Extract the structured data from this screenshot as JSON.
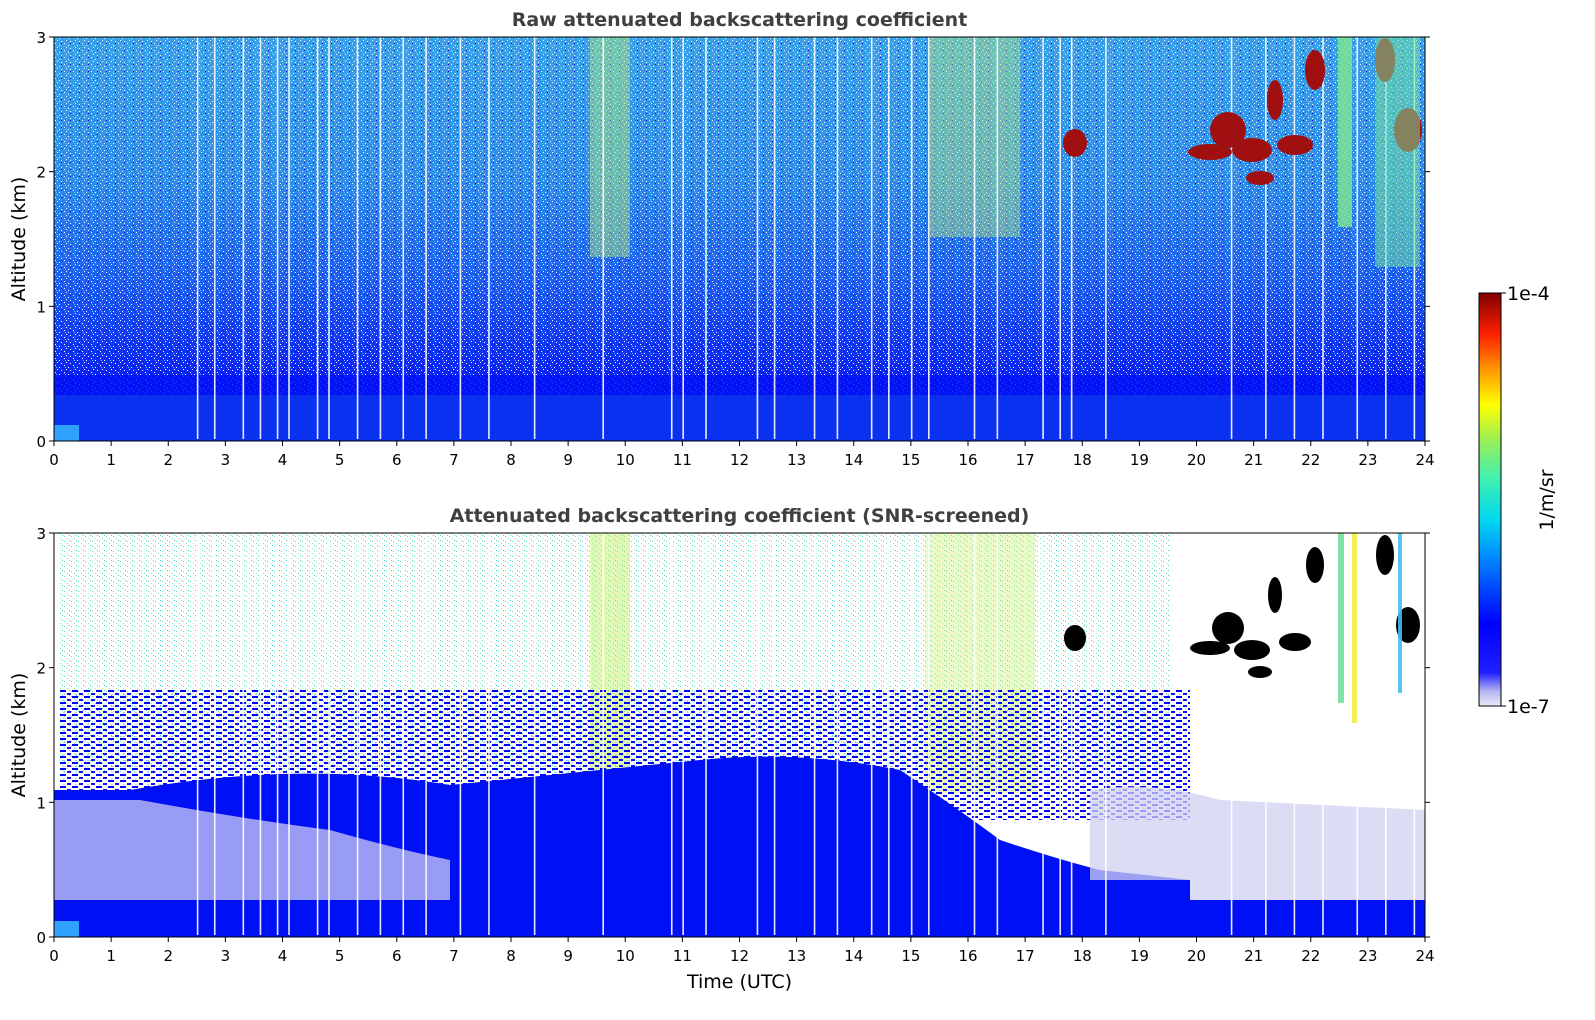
{
  "chart_data": [
    {
      "type": "heatmap",
      "title": "Raw attenuated backscattering coefficient",
      "xlabel": "",
      "ylabel": "Altitude (km)",
      "xlim": [
        0,
        24
      ],
      "ylim": [
        0,
        3
      ],
      "x_ticks": [
        "0",
        "1",
        "2",
        "3",
        "4",
        "5",
        "6",
        "7",
        "8",
        "9",
        "10",
        "11",
        "12",
        "13",
        "14",
        "15",
        "16",
        "17",
        "18",
        "19",
        "20",
        "21",
        "22",
        "23",
        "24"
      ],
      "y_ticks": [
        "0",
        "1",
        "2",
        "3"
      ],
      "grid": false,
      "features": [
        {
          "altitude_km": [
            0,
            0.35
          ],
          "time_utc": [
            0,
            24
          ],
          "level": "1e-6"
        },
        {
          "altitude_km": [
            2.0,
            2.5
          ],
          "time_utc": [
            17.8,
            22.0
          ],
          "level": "1e-4"
        },
        {
          "altitude_km": [
            1.5,
            3.0
          ],
          "time_utc": [
            22.5,
            24
          ],
          "level": "1e-5"
        }
      ]
    },
    {
      "type": "heatmap",
      "title": "Attenuated backscattering coefficient (SNR-screened)",
      "xlabel": "Time (UTC)",
      "ylabel": "Altitude (km)",
      "xlim": [
        0,
        24
      ],
      "ylim": [
        0,
        3
      ],
      "x_ticks": [
        "0",
        "1",
        "2",
        "3",
        "4",
        "5",
        "6",
        "7",
        "8",
        "9",
        "10",
        "11",
        "12",
        "13",
        "14",
        "15",
        "16",
        "17",
        "18",
        "19",
        "20",
        "21",
        "22",
        "23",
        "24"
      ],
      "y_ticks": [
        "0",
        "1",
        "2",
        "3"
      ],
      "grid": false,
      "features": [
        {
          "altitude_km": [
            0,
            1.5
          ],
          "time_utc": [
            0,
            19.5
          ],
          "level": "1e-6"
        },
        {
          "altitude_km": [
            0,
            0.25
          ],
          "time_utc": [
            19.5,
            24
          ],
          "level": "1e-6"
        },
        {
          "altitude_km": [
            1.9,
            2.6
          ],
          "time_utc": [
            17.8,
            22.5
          ],
          "level": "above range (black)"
        }
      ]
    }
  ],
  "colorbar": {
    "min_label": "1e-7",
    "max_label": "1e-4",
    "unit_label": "1/m/sr",
    "scale": "log",
    "colormap": "jet",
    "low_end_colors": [
      "#e6e6f8",
      "#c8c8f0",
      "#a0a0ee"
    ]
  }
}
